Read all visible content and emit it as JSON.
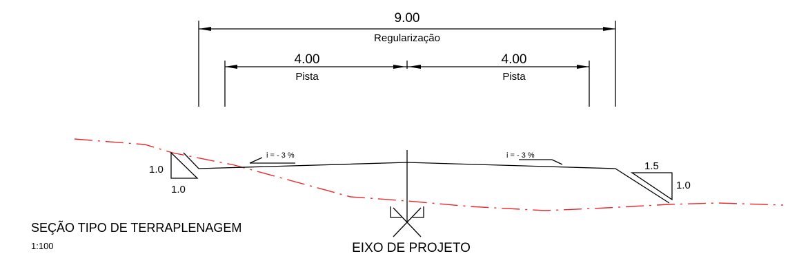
{
  "drawing": {
    "title": "SEÇÃO TIPO DE TERRAPLENAGEM",
    "scale": "1:100",
    "axis_label": "EIXO DE PROJETO",
    "total_width": {
      "value": "9.00",
      "label": "Regularização"
    },
    "lane_left": {
      "value": "4.00",
      "label": "Pista"
    },
    "lane_right": {
      "value": "4.00",
      "label": "Pista"
    },
    "slope_left": "i = - 3 %",
    "slope_right": "i = - 3 %",
    "fill_slope": {
      "vertical": "1.0",
      "horizontal": "1.0"
    },
    "cut_slope": {
      "horizontal": "1.5",
      "vertical": "1.0"
    },
    "colors": {
      "terrain": "#e8262b",
      "lines": "#000000"
    }
  }
}
